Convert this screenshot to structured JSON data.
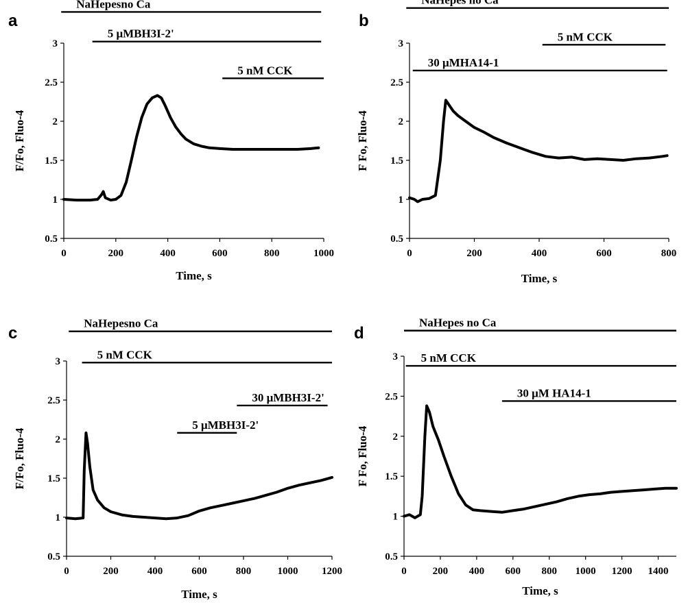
{
  "chart_data": [
    {
      "panel": "a",
      "type": "line",
      "xlabel": "Time, s",
      "ylabel": "F/Fo, Fluo-4",
      "xlim": [
        0,
        1000
      ],
      "ylim": [
        0.5,
        3
      ],
      "xticks": [
        0,
        200,
        400,
        600,
        800,
        1000
      ],
      "yticks": [
        0.5,
        1,
        1.5,
        2,
        2.5,
        3
      ],
      "ytick_labels": [
        "0.5",
        "1",
        "1.5",
        "2",
        "2.5",
        "3"
      ],
      "bars": [
        {
          "label": "NaHepesno Ca",
          "start": -10,
          "end": 990,
          "level": 3.4
        },
        {
          "label": "5 μMBH3I-2'",
          "start": 110,
          "end": 990,
          "level": 3.02
        },
        {
          "label": "5 nM CCK",
          "start": 610,
          "end": 1000,
          "level": 2.55
        }
      ],
      "series": [
        {
          "x": [
            0,
            50,
            100,
            130,
            145,
            152,
            160,
            180,
            200,
            220,
            240,
            260,
            280,
            300,
            320,
            340,
            360,
            375,
            390,
            410,
            430,
            450,
            470,
            500,
            530,
            560,
            600,
            650,
            700,
            750,
            800,
            850,
            900,
            950,
            980
          ],
          "y": [
            1.0,
            0.99,
            0.99,
            1.0,
            1.06,
            1.1,
            1.02,
            0.99,
            1.0,
            1.05,
            1.22,
            1.5,
            1.8,
            2.05,
            2.22,
            2.3,
            2.33,
            2.3,
            2.2,
            2.05,
            1.93,
            1.84,
            1.77,
            1.71,
            1.68,
            1.66,
            1.65,
            1.64,
            1.64,
            1.64,
            1.64,
            1.64,
            1.64,
            1.65,
            1.66
          ]
        }
      ]
    },
    {
      "panel": "b",
      "type": "line",
      "xlabel": "Time, s",
      "ylabel": "F Fo, Fluo-4",
      "xlim": [
        0,
        800
      ],
      "ylim": [
        0.5,
        3
      ],
      "xticks": [
        0,
        200,
        400,
        600,
        800
      ],
      "yticks": [
        0.5,
        1,
        1.5,
        2,
        2.5,
        3
      ],
      "ytick_labels": [
        "0.5",
        "1",
        "1.5",
        "2",
        "2.5",
        "3"
      ],
      "bars": [
        {
          "label": "NaHepes no Ca",
          "start": -10,
          "end": 800,
          "level": 3.45
        },
        {
          "label": "5 nM CCK",
          "start": 410,
          "end": 790,
          "level": 2.98
        },
        {
          "label": "30 μMHA14-1",
          "start": 10,
          "end": 795,
          "level": 2.65
        }
      ],
      "series": [
        {
          "x": [
            0,
            15,
            25,
            40,
            60,
            80,
            95,
            105,
            112,
            120,
            135,
            150,
            170,
            200,
            230,
            260,
            300,
            340,
            380,
            420,
            460,
            500,
            540,
            580,
            620,
            660,
            700,
            740,
            780,
            795
          ],
          "y": [
            1.02,
            1.0,
            0.97,
            1.0,
            1.01,
            1.05,
            1.5,
            2.0,
            2.27,
            2.22,
            2.13,
            2.07,
            2.01,
            1.92,
            1.86,
            1.79,
            1.72,
            1.66,
            1.6,
            1.55,
            1.53,
            1.54,
            1.51,
            1.52,
            1.51,
            1.5,
            1.52,
            1.53,
            1.55,
            1.56
          ]
        }
      ]
    },
    {
      "panel": "c",
      "type": "line",
      "xlabel": "Time, s",
      "ylabel": "F/Fo, Fluo-4",
      "xlim": [
        0,
        1200
      ],
      "ylim": [
        0.5,
        3
      ],
      "xticks": [
        0,
        200,
        400,
        600,
        800,
        1000,
        1200
      ],
      "yticks": [
        0.5,
        1,
        1.5,
        2,
        2.5,
        3
      ],
      "ytick_labels": [
        "0.5",
        "1",
        "1.5",
        "2",
        "2.5",
        "3"
      ],
      "bars": [
        {
          "label": "NaHepesno Ca",
          "start": 10,
          "end": 1200,
          "level": 3.38
        },
        {
          "label": "5 nM CCK",
          "start": 70,
          "end": 1200,
          "level": 2.98
        },
        {
          "label": "30 μMBH3I-2'",
          "start": 770,
          "end": 1180,
          "level": 2.43
        },
        {
          "label": "5 μMBH3I-2'",
          "start": 500,
          "end": 770,
          "level": 2.08
        }
      ],
      "series": [
        {
          "x": [
            0,
            40,
            75,
            80,
            88,
            95,
            105,
            120,
            140,
            170,
            200,
            250,
            300,
            350,
            400,
            450,
            500,
            550,
            600,
            650,
            700,
            750,
            800,
            850,
            900,
            950,
            1000,
            1050,
            1100,
            1150,
            1200
          ],
          "y": [
            0.99,
            0.98,
            0.99,
            1.6,
            2.08,
            1.95,
            1.65,
            1.35,
            1.22,
            1.12,
            1.07,
            1.03,
            1.01,
            1.0,
            0.99,
            0.98,
            0.99,
            1.02,
            1.08,
            1.12,
            1.15,
            1.18,
            1.21,
            1.24,
            1.28,
            1.32,
            1.37,
            1.41,
            1.44,
            1.47,
            1.51
          ]
        }
      ]
    },
    {
      "panel": "d",
      "type": "line",
      "xlabel": "Time, s",
      "ylabel": "F Fo, Fluo-4",
      "xlim": [
        0,
        1500
      ],
      "ylim": [
        0.5,
        3
      ],
      "xticks": [
        0,
        200,
        400,
        600,
        800,
        1000,
        1200,
        1400
      ],
      "yticks": [
        0.5,
        1,
        1.5,
        2,
        2.5,
        3
      ],
      "ytick_labels": [
        "0.5",
        "1",
        "1.5",
        "2",
        "2.5",
        "3"
      ],
      "bars": [
        {
          "label": "NaHepes no Ca",
          "start": 0,
          "end": 1500,
          "level": 3.32
        },
        {
          "label": "5 nM CCK",
          "start": 10,
          "end": 1500,
          "level": 2.88
        },
        {
          "label": "30 μM HA14-1",
          "start": 540,
          "end": 1500,
          "level": 2.44
        }
      ],
      "series": [
        {
          "x": [
            0,
            30,
            60,
            90,
            100,
            115,
            125,
            140,
            160,
            190,
            220,
            260,
            300,
            340,
            380,
            420,
            480,
            540,
            600,
            660,
            720,
            780,
            840,
            900,
            960,
            1020,
            1080,
            1140,
            1200,
            1260,
            1320,
            1380,
            1440,
            1500
          ],
          "y": [
            1.0,
            1.02,
            0.98,
            1.02,
            1.25,
            2.0,
            2.38,
            2.3,
            2.12,
            1.95,
            1.75,
            1.5,
            1.28,
            1.14,
            1.08,
            1.07,
            1.06,
            1.05,
            1.07,
            1.09,
            1.12,
            1.15,
            1.18,
            1.22,
            1.25,
            1.27,
            1.28,
            1.3,
            1.31,
            1.32,
            1.33,
            1.34,
            1.35,
            1.35
          ]
        }
      ]
    }
  ]
}
